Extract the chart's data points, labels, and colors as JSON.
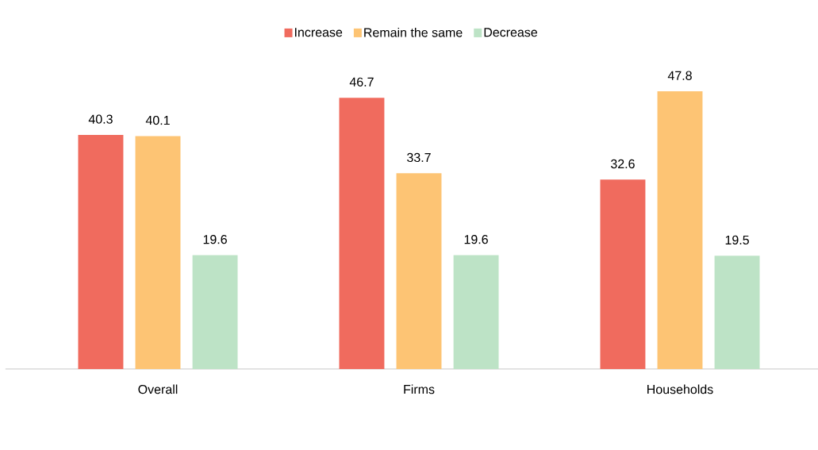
{
  "chart_data": {
    "type": "bar",
    "categories": [
      "Overall",
      "Firms",
      "Households"
    ],
    "series": [
      {
        "name": "Increase",
        "color": "#f06b5e",
        "values": [
          40.3,
          46.7,
          32.6
        ]
      },
      {
        "name": "Remain the same",
        "color": "#fdc474",
        "values": [
          40.1,
          33.7,
          47.8
        ]
      },
      {
        "name": "Decrease",
        "color": "#bde3c6",
        "values": [
          19.6,
          19.6,
          19.5
        ]
      }
    ],
    "data_labels": true,
    "legend": "top",
    "tick_labels": "x"
  }
}
